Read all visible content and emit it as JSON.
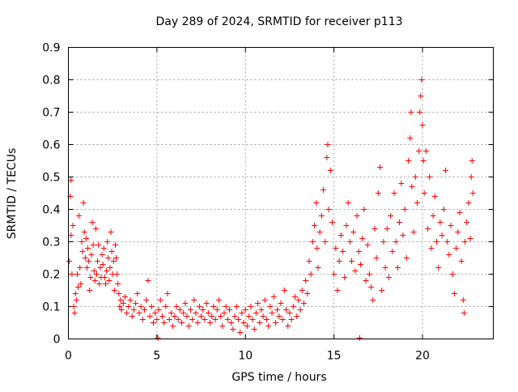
{
  "chart_data": {
    "type": "scatter",
    "title": "Day 289 of 2024, SRMTID for receiver p113",
    "xlabel": "GPS time / hours",
    "ylabel": "SRMTID / TECUs",
    "xlim": [
      0,
      24
    ],
    "ylim": [
      0,
      0.9
    ],
    "xticks": [
      0,
      5,
      10,
      15,
      20
    ],
    "yticks": [
      0,
      0.1,
      0.2,
      0.3,
      0.4,
      0.5,
      0.6,
      0.7,
      0.8,
      0.9
    ],
    "xtick_labels": [
      "0",
      "5",
      "10",
      "15",
      "20"
    ],
    "ytick_labels": [
      "0",
      "0.1",
      "0.2",
      "0.3",
      "0.4",
      "0.5",
      "0.6",
      "0.7",
      "0.8",
      "0.9"
    ],
    "grid": true,
    "marker": "+",
    "color": "#ff0000",
    "series": [
      {
        "name": "SRMTID",
        "points": [
          [
            0.05,
            0.24
          ],
          [
            0.1,
            0.44
          ],
          [
            0.15,
            0.49
          ],
          [
            0.15,
            0.32
          ],
          [
            0.2,
            0.2
          ],
          [
            0.25,
            0.35
          ],
          [
            0.3,
            0.1
          ],
          [
            0.35,
            0.08
          ],
          [
            0.4,
            0.14
          ],
          [
            0.45,
            0.12
          ],
          [
            0.5,
            0.2
          ],
          [
            0.55,
            0.16
          ],
          [
            0.6,
            0.38
          ],
          [
            0.65,
            0.22
          ],
          [
            0.7,
            0.17
          ],
          [
            0.75,
            0.3
          ],
          [
            0.8,
            0.27
          ],
          [
            0.85,
            0.42
          ],
          [
            0.9,
            0.33
          ],
          [
            0.95,
            0.25
          ],
          [
            1.0,
            0.31
          ],
          [
            1.05,
            0.22
          ],
          [
            1.1,
            0.28
          ],
          [
            1.15,
            0.24
          ],
          [
            1.2,
            0.15
          ],
          [
            1.25,
            0.19
          ],
          [
            1.3,
            0.26
          ],
          [
            1.35,
            0.36
          ],
          [
            1.4,
            0.29
          ],
          [
            1.45,
            0.21
          ],
          [
            1.5,
            0.18
          ],
          [
            1.55,
            0.34
          ],
          [
            1.6,
            0.2
          ],
          [
            1.65,
            0.24
          ],
          [
            1.7,
            0.29
          ],
          [
            1.75,
            0.17
          ],
          [
            1.8,
            0.22
          ],
          [
            1.85,
            0.19
          ],
          [
            1.9,
            0.26
          ],
          [
            1.95,
            0.23
          ],
          [
            2.0,
            0.28
          ],
          [
            2.05,
            0.19
          ],
          [
            2.1,
            0.17
          ],
          [
            2.15,
            0.21
          ],
          [
            2.2,
            0.3
          ],
          [
            2.25,
            0.25
          ],
          [
            2.3,
            0.18
          ],
          [
            2.35,
            0.22
          ],
          [
            2.4,
            0.33
          ],
          [
            2.45,
            0.27
          ],
          [
            2.5,
            0.2
          ],
          [
            2.55,
            0.24
          ],
          [
            2.6,
            0.15
          ],
          [
            2.65,
            0.29
          ],
          [
            2.7,
            0.25
          ],
          [
            2.75,
            0.2
          ],
          [
            2.8,
            0.17
          ],
          [
            2.85,
            0.14
          ],
          [
            2.9,
            0.1
          ],
          [
            2.95,
            0.12
          ],
          [
            3.0,
            0.09
          ],
          [
            3.1,
            0.11
          ],
          [
            3.2,
            0.13
          ],
          [
            3.3,
            0.08
          ],
          [
            3.4,
            0.1
          ],
          [
            3.5,
            0.12
          ],
          [
            3.6,
            0.07
          ],
          [
            3.7,
            0.09
          ],
          [
            3.8,
            0.11
          ],
          [
            3.9,
            0.14
          ],
          [
            4.0,
            0.08
          ],
          [
            4.1,
            0.1
          ],
          [
            4.2,
            0.06
          ],
          [
            4.3,
            0.09
          ],
          [
            4.4,
            0.12
          ],
          [
            4.5,
            0.18
          ],
          [
            4.6,
            0.07
          ],
          [
            4.7,
            0.1
          ],
          [
            4.8,
            0.05
          ],
          [
            4.9,
            0.08
          ],
          [
            5.0,
            0.06
          ],
          [
            5.05,
            0.003
          ],
          [
            5.1,
            0.09
          ],
          [
            5.2,
            0.12
          ],
          [
            5.3,
            0.07
          ],
          [
            5.4,
            0.05
          ],
          [
            5.5,
            0.1
          ],
          [
            5.6,
            0.14
          ],
          [
            5.7,
            0.06
          ],
          [
            5.8,
            0.08
          ],
          [
            5.9,
            0.04
          ],
          [
            6.0,
            0.07
          ],
          [
            6.1,
            0.1
          ],
          [
            6.2,
            0.06
          ],
          [
            6.3,
            0.09
          ],
          [
            6.4,
            0.05
          ],
          [
            6.5,
            0.08
          ],
          [
            6.6,
            0.11
          ],
          [
            6.7,
            0.07
          ],
          [
            6.8,
            0.04
          ],
          [
            6.9,
            0.09
          ],
          [
            7.0,
            0.06
          ],
          [
            7.1,
            0.12
          ],
          [
            7.2,
            0.08
          ],
          [
            7.3,
            0.05
          ],
          [
            7.4,
            0.1
          ],
          [
            7.5,
            0.07
          ],
          [
            7.6,
            0.09
          ],
          [
            7.7,
            0.06
          ],
          [
            7.8,
            0.11
          ],
          [
            7.9,
            0.08
          ],
          [
            8.0,
            0.05
          ],
          [
            8.1,
            0.07
          ],
          [
            8.2,
            0.1
          ],
          [
            8.3,
            0.06
          ],
          [
            8.4,
            0.09
          ],
          [
            8.5,
            0.12
          ],
          [
            8.6,
            0.07
          ],
          [
            8.7,
            0.04
          ],
          [
            8.8,
            0.08
          ],
          [
            8.9,
            0.1
          ],
          [
            9.0,
            0.06
          ],
          [
            9.1,
            0.09
          ],
          [
            9.2,
            0.05
          ],
          [
            9.3,
            0.03
          ],
          [
            9.4,
            0.07
          ],
          [
            9.5,
            0.1
          ],
          [
            9.6,
            0.06
          ],
          [
            9.7,
            0.02
          ],
          [
            9.8,
            0.08
          ],
          [
            9.9,
            0.05
          ],
          [
            10.0,
            0.09
          ],
          [
            10.1,
            0.04
          ],
          [
            10.2,
            0.07
          ],
          [
            10.3,
            0.1
          ],
          [
            10.4,
            0.06
          ],
          [
            10.5,
            0.03
          ],
          [
            10.6,
            0.08
          ],
          [
            10.7,
            0.11
          ],
          [
            10.8,
            0.05
          ],
          [
            10.9,
            0.09
          ],
          [
            11.0,
            0.07
          ],
          [
            11.1,
            0.12
          ],
          [
            11.2,
            0.06
          ],
          [
            11.3,
            0.04
          ],
          [
            11.4,
            0.1
          ],
          [
            11.5,
            0.08
          ],
          [
            11.6,
            0.13
          ],
          [
            11.7,
            0.05
          ],
          [
            11.8,
            0.09
          ],
          [
            11.9,
            0.07
          ],
          [
            12.0,
            0.11
          ],
          [
            12.1,
            0.06
          ],
          [
            12.2,
            0.15
          ],
          [
            12.3,
            0.09
          ],
          [
            12.4,
            0.04
          ],
          [
            12.5,
            0.08
          ],
          [
            12.6,
            0.06
          ],
          [
            12.7,
            0.1
          ],
          [
            12.8,
            0.13
          ],
          [
            12.9,
            0.07
          ],
          [
            13.0,
            0.12
          ],
          [
            13.1,
            0.09
          ],
          [
            13.2,
            0.15
          ],
          [
            13.3,
            0.11
          ],
          [
            13.4,
            0.18
          ],
          [
            13.5,
            0.14
          ],
          [
            13.6,
            0.24
          ],
          [
            13.7,
            0.2
          ],
          [
            13.8,
            0.3
          ],
          [
            13.9,
            0.35
          ],
          [
            14.0,
            0.42
          ],
          [
            14.05,
            0.28
          ],
          [
            14.1,
            0.22
          ],
          [
            14.2,
            0.33
          ],
          [
            14.3,
            0.38
          ],
          [
            14.4,
            0.46
          ],
          [
            14.5,
            0.3
          ],
          [
            14.6,
            0.56
          ],
          [
            14.65,
            0.6
          ],
          [
            14.7,
            0.4
          ],
          [
            14.8,
            0.52
          ],
          [
            14.9,
            0.36
          ],
          [
            15.0,
            0.2
          ],
          [
            15.1,
            0.28
          ],
          [
            15.2,
            0.15
          ],
          [
            15.3,
            0.24
          ],
          [
            15.4,
            0.32
          ],
          [
            15.5,
            0.27
          ],
          [
            15.6,
            0.19
          ],
          [
            15.7,
            0.35
          ],
          [
            15.8,
            0.42
          ],
          [
            15.9,
            0.3
          ],
          [
            16.0,
            0.24
          ],
          [
            16.1,
            0.33
          ],
          [
            16.2,
            0.21
          ],
          [
            16.3,
            0.38
          ],
          [
            16.4,
            0.27
          ],
          [
            16.45,
            0.003
          ],
          [
            16.5,
            0.23
          ],
          [
            16.6,
            0.31
          ],
          [
            16.7,
            0.4
          ],
          [
            16.8,
            0.18
          ],
          [
            16.9,
            0.29
          ],
          [
            17.0,
            0.2
          ],
          [
            17.1,
            0.16
          ],
          [
            17.2,
            0.12
          ],
          [
            17.3,
            0.34
          ],
          [
            17.4,
            0.25
          ],
          [
            17.5,
            0.45
          ],
          [
            17.6,
            0.53
          ],
          [
            17.7,
            0.15
          ],
          [
            17.8,
            0.3
          ],
          [
            17.9,
            0.22
          ],
          [
            18.0,
            0.34
          ],
          [
            18.1,
            0.19
          ],
          [
            18.2,
            0.38
          ],
          [
            18.3,
            0.27
          ],
          [
            18.4,
            0.45
          ],
          [
            18.5,
            0.3
          ],
          [
            18.6,
            0.22
          ],
          [
            18.7,
            0.36
          ],
          [
            18.8,
            0.48
          ],
          [
            18.9,
            0.32
          ],
          [
            19.0,
            0.4
          ],
          [
            19.1,
            0.25
          ],
          [
            19.2,
            0.55
          ],
          [
            19.3,
            0.62
          ],
          [
            19.35,
            0.7
          ],
          [
            19.4,
            0.47
          ],
          [
            19.5,
            0.33
          ],
          [
            19.6,
            0.5
          ],
          [
            19.7,
            0.42
          ],
          [
            19.8,
            0.58
          ],
          [
            19.85,
            0.7
          ],
          [
            19.9,
            0.75
          ],
          [
            19.95,
            0.8
          ],
          [
            20.0,
            0.66
          ],
          [
            20.05,
            0.55
          ],
          [
            20.1,
            0.45
          ],
          [
            20.2,
            0.58
          ],
          [
            20.3,
            0.34
          ],
          [
            20.4,
            0.5
          ],
          [
            20.5,
            0.28
          ],
          [
            20.6,
            0.38
          ],
          [
            20.7,
            0.44
          ],
          [
            20.8,
            0.3
          ],
          [
            20.9,
            0.22
          ],
          [
            21.0,
            0.36
          ],
          [
            21.1,
            0.32
          ],
          [
            21.2,
            0.4
          ],
          [
            21.3,
            0.52
          ],
          [
            21.4,
            0.3
          ],
          [
            21.5,
            0.26
          ],
          [
            21.6,
            0.35
          ],
          [
            21.7,
            0.2
          ],
          [
            21.8,
            0.14
          ],
          [
            21.9,
            0.28
          ],
          [
            22.0,
            0.33
          ],
          [
            22.1,
            0.39
          ],
          [
            22.2,
            0.24
          ],
          [
            22.3,
            0.12
          ],
          [
            22.35,
            0.08
          ],
          [
            22.4,
            0.3
          ],
          [
            22.5,
            0.36
          ],
          [
            22.6,
            0.42
          ],
          [
            22.7,
            0.31
          ],
          [
            22.75,
            0.5
          ],
          [
            22.8,
            0.55
          ],
          [
            22.85,
            0.45
          ]
        ]
      }
    ]
  }
}
